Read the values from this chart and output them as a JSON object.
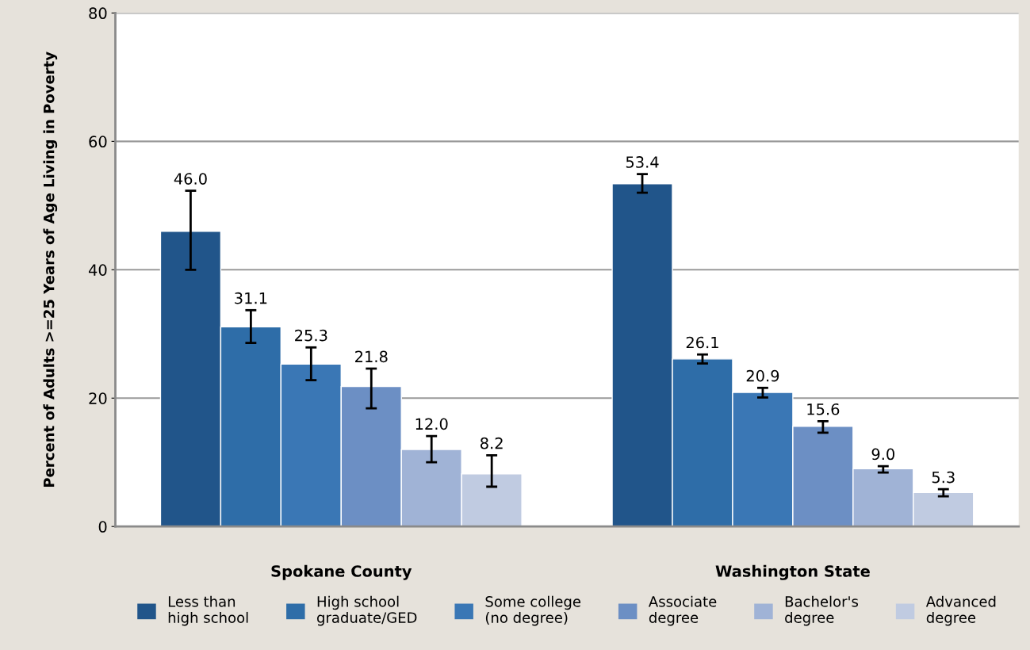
{
  "chart_data": {
    "type": "bar",
    "ylabel": "Percent of Adults >=25 Years of Age Living in Poverty",
    "categories": [
      "Spokane County",
      "Washington State"
    ],
    "series": [
      {
        "name": "Less than\nhigh school",
        "color": "#21558a",
        "values": [
          46.0,
          53.4
        ],
        "value_labels": [
          "46.0",
          "53.4"
        ],
        "errors": [
          [
            40.0,
            52.3
          ],
          [
            52.0,
            54.9
          ]
        ]
      },
      {
        "name": "High school\ngraduate/GED",
        "color": "#2e6da8",
        "values": [
          31.1,
          26.1
        ],
        "value_labels": [
          "31.1",
          "26.1"
        ],
        "errors": [
          [
            28.6,
            33.7
          ],
          [
            25.4,
            26.8
          ]
        ]
      },
      {
        "name": "Some college\n(no degree)",
        "color": "#3a77b5",
        "values": [
          25.3,
          20.9
        ],
        "value_labels": [
          "25.3",
          "20.9"
        ],
        "errors": [
          [
            22.8,
            27.9
          ],
          [
            20.1,
            21.6
          ]
        ]
      },
      {
        "name": "Associate\ndegree",
        "color": "#6c8fc4",
        "values": [
          21.8,
          15.6
        ],
        "value_labels": [
          "21.8",
          "15.6"
        ],
        "errors": [
          [
            18.4,
            24.6
          ],
          [
            14.6,
            16.4
          ]
        ]
      },
      {
        "name": "Bachelor's\ndegree",
        "color": "#a0b3d6",
        "values": [
          12.0,
          9.0
        ],
        "value_labels": [
          "12.0",
          "9.0"
        ],
        "errors": [
          [
            10.0,
            14.1
          ],
          [
            8.4,
            9.4
          ]
        ]
      },
      {
        "name": "Advanced\ndegree",
        "color": "#c0cbe1",
        "values": [
          8.2,
          5.3
        ],
        "value_labels": [
          "8.2",
          "5.3"
        ],
        "errors": [
          [
            6.2,
            11.1
          ],
          [
            4.7,
            5.8
          ]
        ]
      }
    ],
    "ylim": [
      0,
      80
    ],
    "yticks": [
      0,
      20,
      40,
      60,
      80
    ],
    "grid": "y",
    "legend": "bottom"
  }
}
